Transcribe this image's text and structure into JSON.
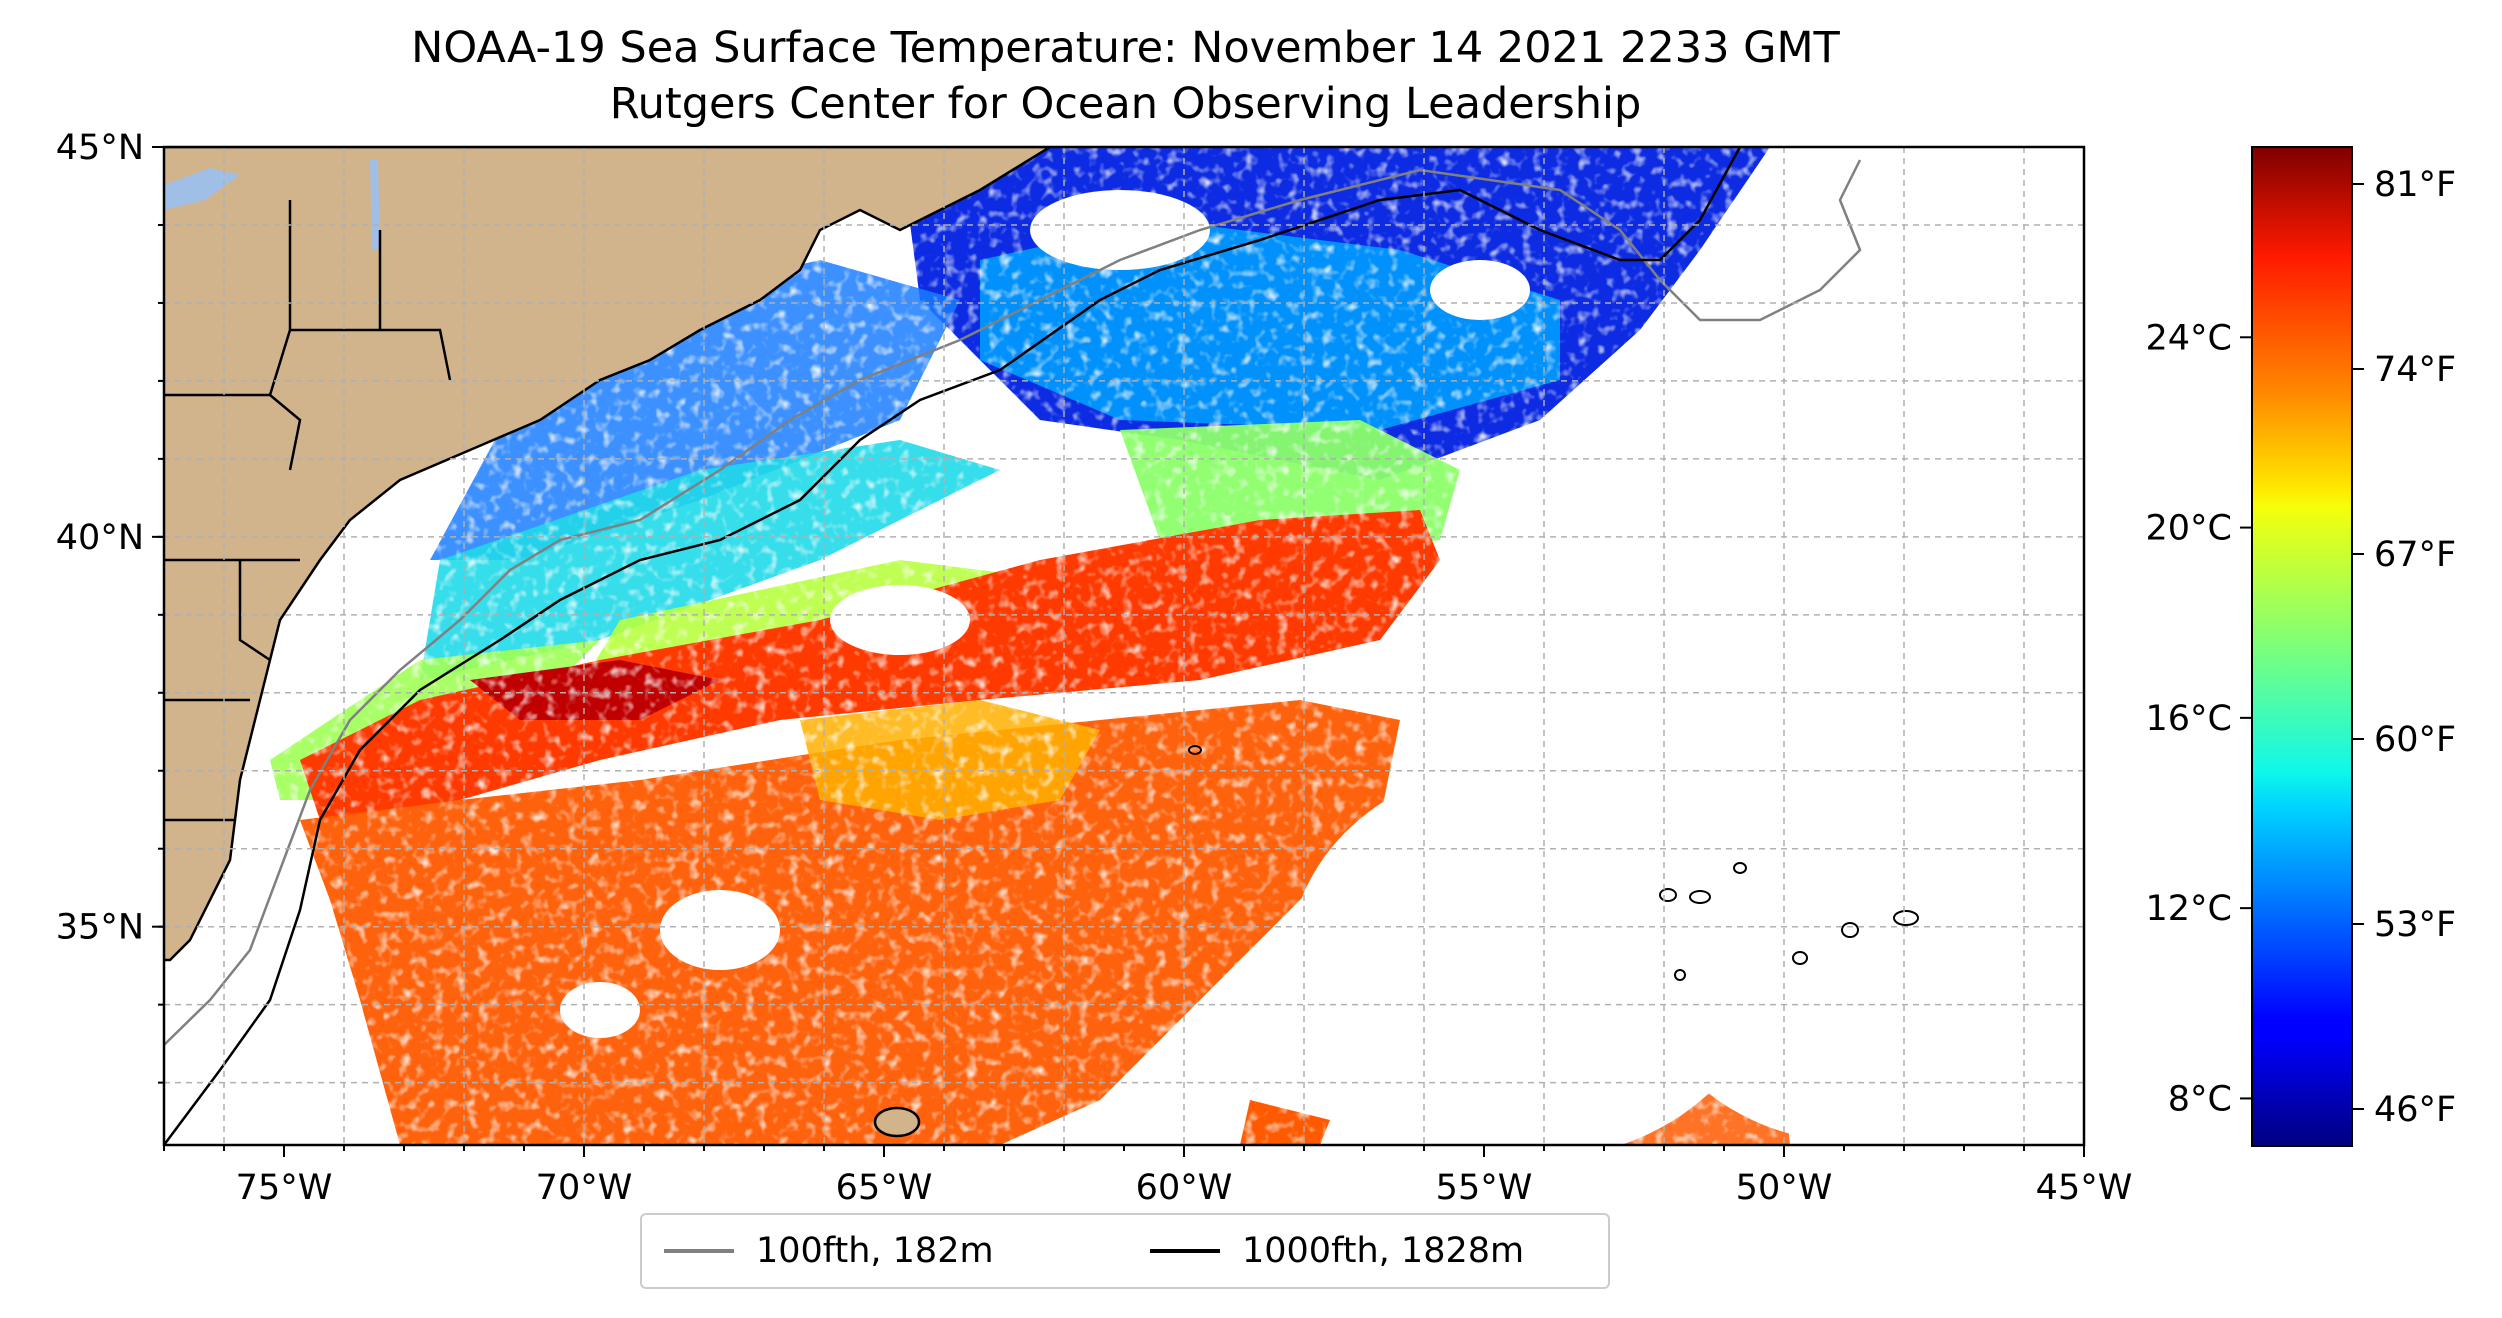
{
  "title": {
    "line1": "NOAA-19 Sea Surface Temperature: November 14 2021 2233 GMT",
    "line2": "Rutgers Center for Ocean Observing Leadership"
  },
  "map": {
    "lon_range": [
      -77,
      -45
    ],
    "lat_range": [
      32.2,
      45
    ],
    "x_ticks": [
      {
        "value": -75,
        "label": "75°W"
      },
      {
        "value": -70,
        "label": "70°W"
      },
      {
        "value": -65,
        "label": "65°W"
      },
      {
        "value": -60,
        "label": "60°W"
      },
      {
        "value": -55,
        "label": "55°W"
      },
      {
        "value": -50,
        "label": "50°W"
      },
      {
        "value": -45,
        "label": "45°W"
      }
    ],
    "y_ticks": [
      {
        "value": 45,
        "label": "45°N"
      },
      {
        "value": 40,
        "label": "40°N"
      },
      {
        "value": 35,
        "label": "35°N"
      }
    ],
    "grid": true,
    "land_color": "#d2b48c",
    "lake_color": "#9fbfe6"
  },
  "colorbar": {
    "colormap": "jet",
    "fahrenheit_ticks": [
      {
        "value": 81,
        "label": "81°F"
      },
      {
        "value": 74,
        "label": "74°F"
      },
      {
        "value": 67,
        "label": "67°F"
      },
      {
        "value": 60,
        "label": "60°F"
      },
      {
        "value": 53,
        "label": "53°F"
      },
      {
        "value": 46,
        "label": "46°F"
      }
    ],
    "celsius_ticks": [
      {
        "value": 24,
        "label": "24°C"
      },
      {
        "value": 20,
        "label": "20°C"
      },
      {
        "value": 16,
        "label": "16°C"
      },
      {
        "value": 12,
        "label": "12°C"
      },
      {
        "value": 8,
        "label": "8°C"
      }
    ]
  },
  "legend": {
    "items": [
      {
        "label": "100fth, 182m",
        "color": "#808080"
      },
      {
        "label": "1000fth, 1828m",
        "color": "#000000"
      }
    ]
  }
}
